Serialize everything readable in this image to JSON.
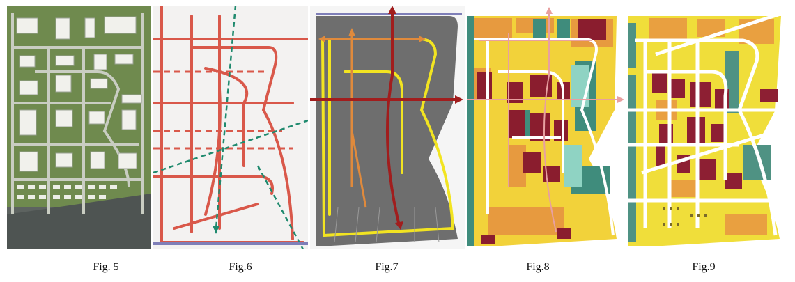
{
  "figures": [
    {
      "id": "fig5",
      "caption": "Fig. 5",
      "kind": "aerial-site-plan",
      "colors": {
        "ground": "#6f8a4e",
        "road": "#c9cdc2",
        "building": "#f1f1ec",
        "shadow": "#9aa294"
      }
    },
    {
      "id": "fig6",
      "caption": "Fig.6",
      "kind": "road-grid-sketch",
      "colors": {
        "road": "#d9584a",
        "axis": "#1f8a6e",
        "paper": "#f3f2f1"
      }
    },
    {
      "id": "fig7",
      "caption": "Fig.7",
      "kind": "movement-axes",
      "colors": {
        "block": "#6e6e6e",
        "primary": "#f2e421",
        "secondary": "#e08a3c",
        "main_axis": "#a11d1d"
      }
    },
    {
      "id": "fig8",
      "caption": "Fig.8",
      "kind": "land-use-zoning",
      "colors": {
        "yellow": "#f2d23a",
        "orange": "#e79a3f",
        "teal": "#3f8c7c",
        "maroon": "#8a1d2e",
        "aqua": "#8fd3c3"
      }
    },
    {
      "id": "fig9",
      "caption": "Fig.9",
      "kind": "building-massing",
      "colors": {
        "yellow": "#f0de3a",
        "orange": "#e9a040",
        "teal": "#4f9283",
        "maroon": "#8d1f33"
      }
    }
  ]
}
